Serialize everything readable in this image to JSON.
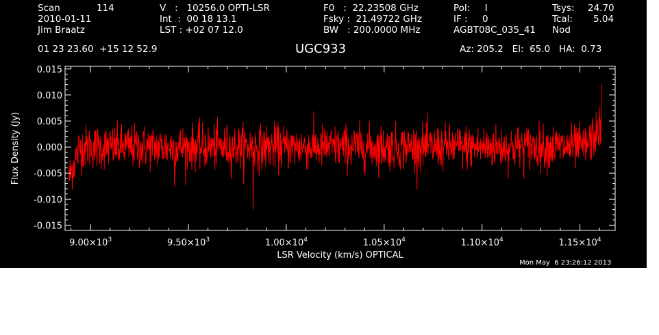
{
  "header": {
    "scan_label": "Scan",
    "scan_value": "114",
    "date": "2010-01-11",
    "observer": "Jim Braatz",
    "coords": "01 23 23.60  +15 12 52.9",
    "v_line": "V   :   10256.0 OPTI-LSR",
    "int_line": "Int  :  00 18 13.1",
    "lst_line": "LST : +02 07 12.0",
    "f0_line": "F0   :  22.23508 GHz",
    "fsky_line": "Fsky :  21.49722 GHz",
    "bw_line": "BW   : 200.0000 MHz",
    "pol_line": "Pol:     I",
    "if_line": "IF :     0",
    "proj_line": "AGBT08C_035_41",
    "tsys_label": "Tsys:",
    "tsys_value": "24.70",
    "tcal_label": "Tcal:",
    "tcal_value": "5.04",
    "nod": "Nod",
    "source": "UGC933",
    "az_el_ha": "Az: 205.2   El:  65.0   HA:  0.73",
    "timestamp": "Mon May  6 23:26:12 2013"
  },
  "colors": {
    "background": "#000000",
    "foreground": "#ffffff",
    "trace": "#ff0000"
  },
  "chart_data": {
    "type": "line",
    "title": "UGC933",
    "xlabel": "LSR Velocity (km/s) OPTICAL",
    "ylabel": "Flux Density (Jy)",
    "xlim": [
      8870,
      11680
    ],
    "ylim": [
      -0.016,
      0.0155
    ],
    "yticks": [
      "-0.015",
      "-0.010",
      "-0.005",
      "0.000",
      "0.005",
      "0.010",
      "0.015"
    ],
    "ytick_values": [
      -0.015,
      -0.01,
      -0.005,
      0.0,
      0.005,
      0.01,
      0.015
    ],
    "xticks": [
      {
        "value": 9000,
        "mant": "9.00×10",
        "exp": "3"
      },
      {
        "value": 9500,
        "mant": "9.50×10",
        "exp": "3"
      },
      {
        "value": 10000,
        "mant": "1.00×10",
        "exp": "4"
      },
      {
        "value": 10500,
        "mant": "1.05×10",
        "exp": "4"
      },
      {
        "value": 11000,
        "mant": "1.10×10",
        "exp": "4"
      },
      {
        "value": 11500,
        "mant": "1.15×10",
        "exp": "4"
      }
    ],
    "series": [
      {
        "x_start": 8890,
        "x_end": 11610,
        "n_points": 1600,
        "noise_rms": 0.0021,
        "baseline": 0.0,
        "low_edge_dip": -0.0085,
        "high_edge_peak": 0.0122,
        "notable_points": [
          {
            "x": 9830,
            "y": -0.012
          },
          {
            "x": 9430,
            "y": -0.0075
          },
          {
            "x": 11610,
            "y": 0.0122
          }
        ]
      }
    ],
    "grid": false,
    "legend": "none"
  }
}
